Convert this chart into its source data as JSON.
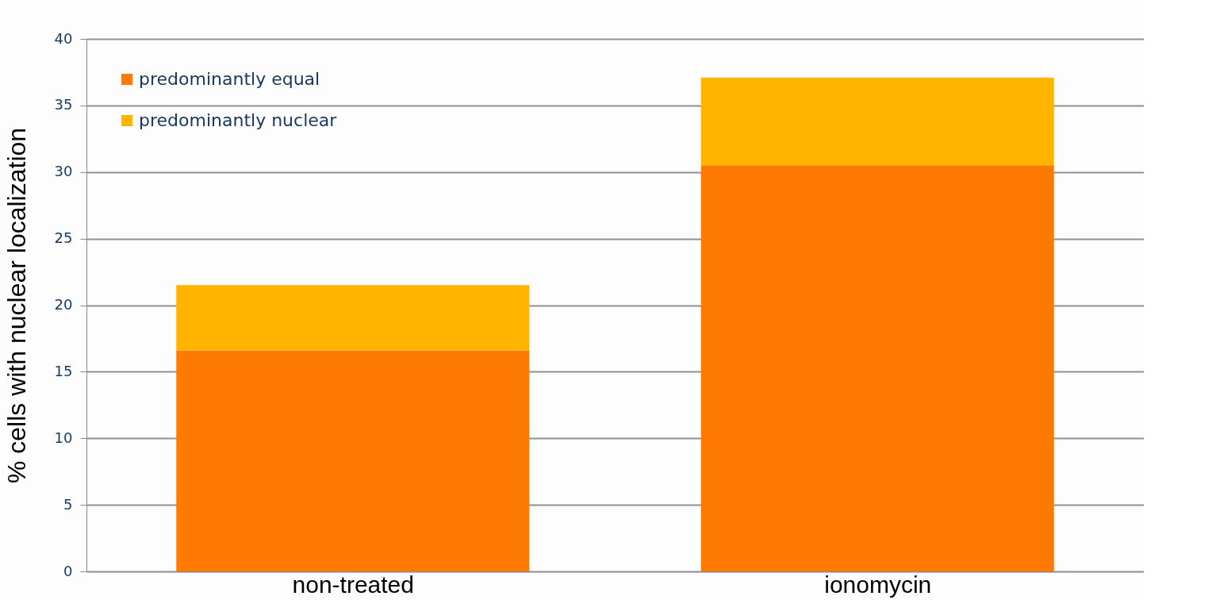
{
  "chart_data": {
    "type": "bar",
    "stacked": true,
    "ylabel": "% cells with nuclear localization",
    "categories": [
      "non-treated",
      "ionomycin"
    ],
    "series": [
      {
        "name": "predominantly equal",
        "color": "#ff7a00",
        "values": [
          16.6,
          30.5
        ]
      },
      {
        "name": "predominantly nuclear",
        "color": "#ffb400",
        "values": [
          4.9,
          6.6
        ]
      }
    ],
    "ylim": [
      0,
      40
    ],
    "yticks": [
      0,
      5,
      10,
      15,
      20,
      25,
      30,
      35,
      40
    ],
    "grid": "y",
    "legend": "top left"
  }
}
